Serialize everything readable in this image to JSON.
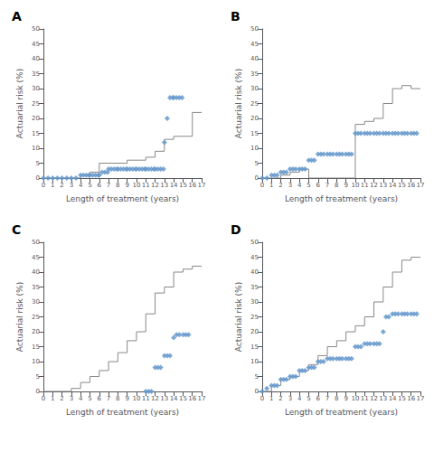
{
  "chart_data": [
    {
      "type": "line",
      "title": "A",
      "xlabel": "Length of treatment (years)",
      "ylabel": "Actuarial risk (%)",
      "xlim": [
        0,
        17
      ],
      "ylim": [
        0,
        50
      ],
      "xticks": [
        0,
        1,
        2,
        3,
        4,
        5,
        6,
        7,
        8,
        9,
        10,
        11,
        12,
        13,
        14,
        15,
        16,
        17
      ],
      "yticks": [
        0,
        5,
        10,
        15,
        20,
        25,
        30,
        35,
        40,
        45,
        50
      ],
      "grid": false,
      "series": [
        {
          "type": "line",
          "color": "#888888",
          "x": [
            0,
            4,
            4,
            5,
            5,
            6,
            6,
            9,
            9,
            11,
            11,
            12,
            12,
            13,
            13,
            14,
            14,
            15,
            15,
            16,
            16,
            17
          ],
          "values": [
            0,
            0,
            1,
            1,
            2,
            2,
            5,
            5,
            6,
            6,
            7,
            7,
            9,
            9,
            13,
            13,
            14,
            14,
            14,
            14,
            22,
            22
          ]
        },
        {
          "type": "scatter",
          "marker": "diamond",
          "color": "#6699cc",
          "x": [
            0,
            0.5,
            1,
            1.5,
            2,
            2.5,
            3,
            3.5,
            4,
            4.3,
            4.6,
            4.9,
            5,
            5.3,
            5.6,
            5.9,
            6,
            6.3,
            6.6,
            6.9,
            7,
            7.3,
            7.6,
            7.9,
            8,
            8.3,
            8.6,
            8.9,
            9,
            9.3,
            9.6,
            9.9,
            10,
            10.3,
            10.6,
            10.9,
            11,
            11.3,
            11.6,
            11.9,
            12,
            12.3,
            12.6,
            12.9,
            13,
            13.3,
            13.6,
            13.9,
            14,
            14.3,
            14.6,
            14.9
          ],
          "values": [
            0,
            0,
            0,
            0,
            0,
            0,
            0,
            0,
            1,
            1,
            1,
            1,
            1,
            1,
            1,
            1,
            1,
            2,
            2,
            2,
            3,
            3,
            3,
            3,
            3,
            3,
            3,
            3,
            3,
            3,
            3,
            3,
            3,
            3,
            3,
            3,
            3,
            3,
            3,
            3,
            3,
            3,
            3,
            3,
            12,
            20,
            27,
            27,
            27,
            27,
            27,
            27
          ]
        }
      ]
    },
    {
      "type": "line",
      "title": "B",
      "xlabel": "Length of treatment (years)",
      "ylabel": "Actuarial risk (%)",
      "xlim": [
        0,
        17
      ],
      "ylim": [
        0,
        50
      ],
      "xticks": [
        0,
        1,
        2,
        3,
        4,
        5,
        6,
        7,
        8,
        9,
        10,
        11,
        12,
        13,
        14,
        15,
        16,
        17
      ],
      "yticks": [
        0,
        5,
        10,
        15,
        20,
        25,
        30,
        35,
        40,
        45,
        50
      ],
      "grid": false,
      "series": [
        {
          "type": "line",
          "color": "#888888",
          "x": [
            0,
            2,
            2,
            3,
            3,
            4,
            4,
            5,
            5,
            10,
            10,
            11,
            11,
            12,
            12,
            13,
            13,
            14,
            14,
            15,
            15,
            16,
            16,
            17
          ],
          "values": [
            0,
            0,
            1,
            1,
            2,
            2,
            3,
            3,
            0,
            0,
            18,
            18,
            19,
            19,
            20,
            20,
            25,
            25,
            30,
            30,
            31,
            31,
            30,
            30
          ]
        },
        {
          "type": "scatter",
          "marker": "diamond",
          "color": "#6699cc",
          "x": [
            0,
            0.5,
            1,
            1.3,
            1.6,
            2,
            2.3,
            2.6,
            3,
            3.3,
            3.6,
            4,
            4.3,
            4.6,
            5,
            5.3,
            5.6,
            6,
            6.3,
            6.6,
            7,
            7.3,
            7.6,
            8,
            8.3,
            8.6,
            9,
            9.3,
            9.6,
            10,
            10.3,
            10.6,
            11,
            11.3,
            11.6,
            12,
            12.3,
            12.6,
            13,
            13.3,
            13.6,
            14,
            14.3,
            14.6,
            15,
            15.3,
            15.6,
            16,
            16.3,
            16.6
          ],
          "values": [
            0,
            0,
            1,
            1,
            1,
            2,
            2,
            2,
            3,
            3,
            3,
            3,
            3,
            3,
            6,
            6,
            6,
            8,
            8,
            8,
            8,
            8,
            8,
            8,
            8,
            8,
            8,
            8,
            8,
            15,
            15,
            15,
            15,
            15,
            15,
            15,
            15,
            15,
            15,
            15,
            15,
            15,
            15,
            15,
            15,
            15,
            15,
            15,
            15,
            15
          ]
        }
      ]
    },
    {
      "type": "line",
      "title": "C",
      "xlabel": "Length of treatment (years)",
      "ylabel": "Actuarial risk (%)",
      "xlim": [
        0,
        17
      ],
      "ylim": [
        0,
        50
      ],
      "xticks": [
        0,
        1,
        2,
        3,
        4,
        5,
        6,
        7,
        8,
        9,
        10,
        11,
        12,
        13,
        14,
        15,
        16,
        17
      ],
      "yticks": [
        0,
        5,
        10,
        15,
        20,
        25,
        30,
        35,
        40,
        45,
        50
      ],
      "grid": false,
      "series": [
        {
          "type": "line",
          "color": "#888888",
          "x": [
            0,
            3,
            3,
            4,
            4,
            5,
            5,
            6,
            6,
            7,
            7,
            8,
            8,
            9,
            9,
            10,
            10,
            11,
            11,
            12,
            12,
            13,
            13,
            14,
            14,
            15,
            15,
            16,
            16,
            17
          ],
          "values": [
            0,
            0,
            1,
            1,
            3,
            3,
            5,
            5,
            7,
            7,
            10,
            10,
            13,
            13,
            17,
            17,
            20,
            20,
            26,
            26,
            33,
            33,
            35,
            35,
            40,
            40,
            41,
            41,
            42,
            42
          ]
        },
        {
          "type": "scatter",
          "marker": "diamond",
          "color": "#6699cc",
          "x": [
            11,
            11.3,
            11.6,
            12,
            12.3,
            12.6,
            13,
            13.3,
            13.6,
            14,
            14.3,
            14.6,
            15,
            15.3,
            15.6
          ],
          "values": [
            0,
            0,
            0,
            8,
            8,
            8,
            12,
            12,
            12,
            18,
            19,
            19,
            19,
            19,
            19
          ]
        }
      ]
    },
    {
      "type": "line",
      "title": "D",
      "xlabel": "Length of treatment (years)",
      "ylabel": "Actuarial risk (%)",
      "xlim": [
        0,
        17
      ],
      "ylim": [
        0,
        50
      ],
      "xticks": [
        0,
        1,
        2,
        3,
        4,
        5,
        6,
        7,
        8,
        9,
        10,
        11,
        12,
        13,
        14,
        15,
        16,
        17
      ],
      "yticks": [
        0,
        5,
        10,
        15,
        20,
        25,
        30,
        35,
        40,
        45,
        50
      ],
      "grid": false,
      "series": [
        {
          "type": "line",
          "color": "#888888",
          "x": [
            0,
            1,
            1,
            2,
            2,
            3,
            3,
            4,
            4,
            5,
            5,
            6,
            6,
            7,
            7,
            8,
            8,
            9,
            9,
            10,
            10,
            11,
            11,
            12,
            12,
            13,
            13,
            14,
            14,
            15,
            15,
            16,
            16,
            17
          ],
          "values": [
            0,
            0,
            2,
            2,
            4,
            4,
            5,
            5,
            7,
            7,
            9,
            9,
            12,
            12,
            15,
            15,
            17,
            17,
            20,
            20,
            22,
            22,
            25,
            25,
            30,
            30,
            35,
            35,
            40,
            40,
            44,
            44,
            45,
            45
          ]
        },
        {
          "type": "scatter",
          "marker": "diamond",
          "color": "#6699cc",
          "x": [
            0,
            0.5,
            1,
            1.3,
            1.6,
            2,
            2.3,
            2.6,
            3,
            3.3,
            3.6,
            4,
            4.3,
            4.6,
            5,
            5.3,
            5.6,
            6,
            6.3,
            6.6,
            7,
            7.3,
            7.6,
            8,
            8.3,
            8.6,
            9,
            9.3,
            9.6,
            10,
            10.3,
            10.6,
            11,
            11.3,
            11.6,
            12,
            12.3,
            12.6,
            13,
            13.3,
            13.6,
            14,
            14.3,
            14.6,
            15,
            15.3,
            15.6,
            16,
            16.3,
            16.6
          ],
          "values": [
            0,
            1,
            2,
            2,
            2,
            4,
            4,
            4,
            5,
            5,
            5,
            7,
            7,
            7,
            8,
            8,
            8,
            10,
            10,
            10,
            11,
            11,
            11,
            11,
            11,
            11,
            11,
            11,
            11,
            15,
            15,
            15,
            16,
            16,
            16,
            16,
            16,
            16,
            20,
            25,
            25,
            26,
            26,
            26,
            26,
            26,
            26,
            26,
            26,
            26
          ]
        }
      ]
    }
  ]
}
